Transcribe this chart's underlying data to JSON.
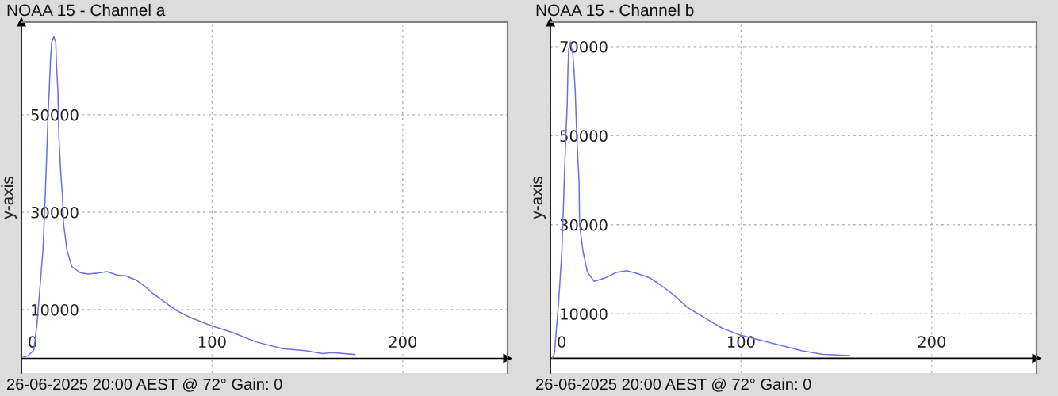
{
  "chart_data": [
    {
      "type": "line",
      "title": "NOAA 15 - Channel a",
      "ylabel": "y-axis",
      "annotations": [
        "26-06-2025 20:00 AEST @ 72° Gain: 0"
      ],
      "x": [
        1,
        3.3,
        6.5,
        8.2,
        9.9,
        11.3,
        12.5,
        13.2,
        13.9,
        14.6,
        15.2,
        15.9,
        17,
        18,
        18.4,
        19.1,
        19.7,
        20.5,
        21.5,
        22.1,
        23.9,
        26.5,
        30.8,
        35,
        40,
        45,
        50,
        55,
        60,
        65,
        69,
        75,
        81,
        88,
        99,
        111,
        123,
        137,
        149,
        158,
        163,
        175
      ],
      "values": [
        300,
        500,
        1700,
        7200,
        15400,
        22200,
        33400,
        41000,
        49200,
        55200,
        61000,
        64900,
        66000,
        64900,
        60500,
        55100,
        45400,
        38900,
        33400,
        27700,
        22200,
        18800,
        17600,
        17300,
        17500,
        17800,
        17100,
        16900,
        16100,
        14700,
        13300,
        11600,
        9900,
        8500,
        6800,
        5300,
        3400,
        2000,
        1600,
        1000,
        1200,
        800
      ],
      "color": "#7070e6",
      "xlim": [
        0,
        255
      ],
      "ylim": [
        -3000,
        69000
      ],
      "xticks": [
        0,
        100,
        200
      ],
      "yticks": [
        10000,
        30000,
        50000
      ],
      "grid": true,
      "line_style": "solid"
    },
    {
      "type": "line",
      "title": "NOAA 15 - Channel b",
      "ylabel": "y-axis",
      "annotations": [
        "26-06-2025 20:00 AEST @ 72° Gain: 0"
      ],
      "x": [
        1,
        2.1,
        4.3,
        6,
        6.9,
        7.4,
        8.1,
        8.8,
        9.2,
        9.6,
        10.5,
        11.7,
        12.3,
        13,
        13.6,
        14.3,
        15,
        15.3,
        17.1,
        19.4,
        22.9,
        29,
        34.5,
        40,
        45,
        52,
        58,
        65,
        72,
        81,
        90,
        99,
        108,
        122,
        132,
        143,
        157
      ],
      "values": [
        0,
        1100,
        12600,
        24000,
        34800,
        41900,
        49700,
        56800,
        65100,
        69500,
        71000,
        68600,
        65100,
        60300,
        52600,
        45500,
        40000,
        30000,
        24000,
        19400,
        17300,
        18100,
        19300,
        19700,
        19100,
        18100,
        16400,
        14100,
        11400,
        9100,
        6800,
        5300,
        4300,
        2800,
        1700,
        900,
        600
      ],
      "color": "#7070e6",
      "xlim": [
        0,
        255
      ],
      "ylim": [
        -3300,
        75500
      ],
      "xticks": [
        0,
        100,
        200
      ],
      "yticks": [
        10000,
        30000,
        50000,
        70000
      ],
      "grid": true,
      "line_style": "solid"
    }
  ]
}
